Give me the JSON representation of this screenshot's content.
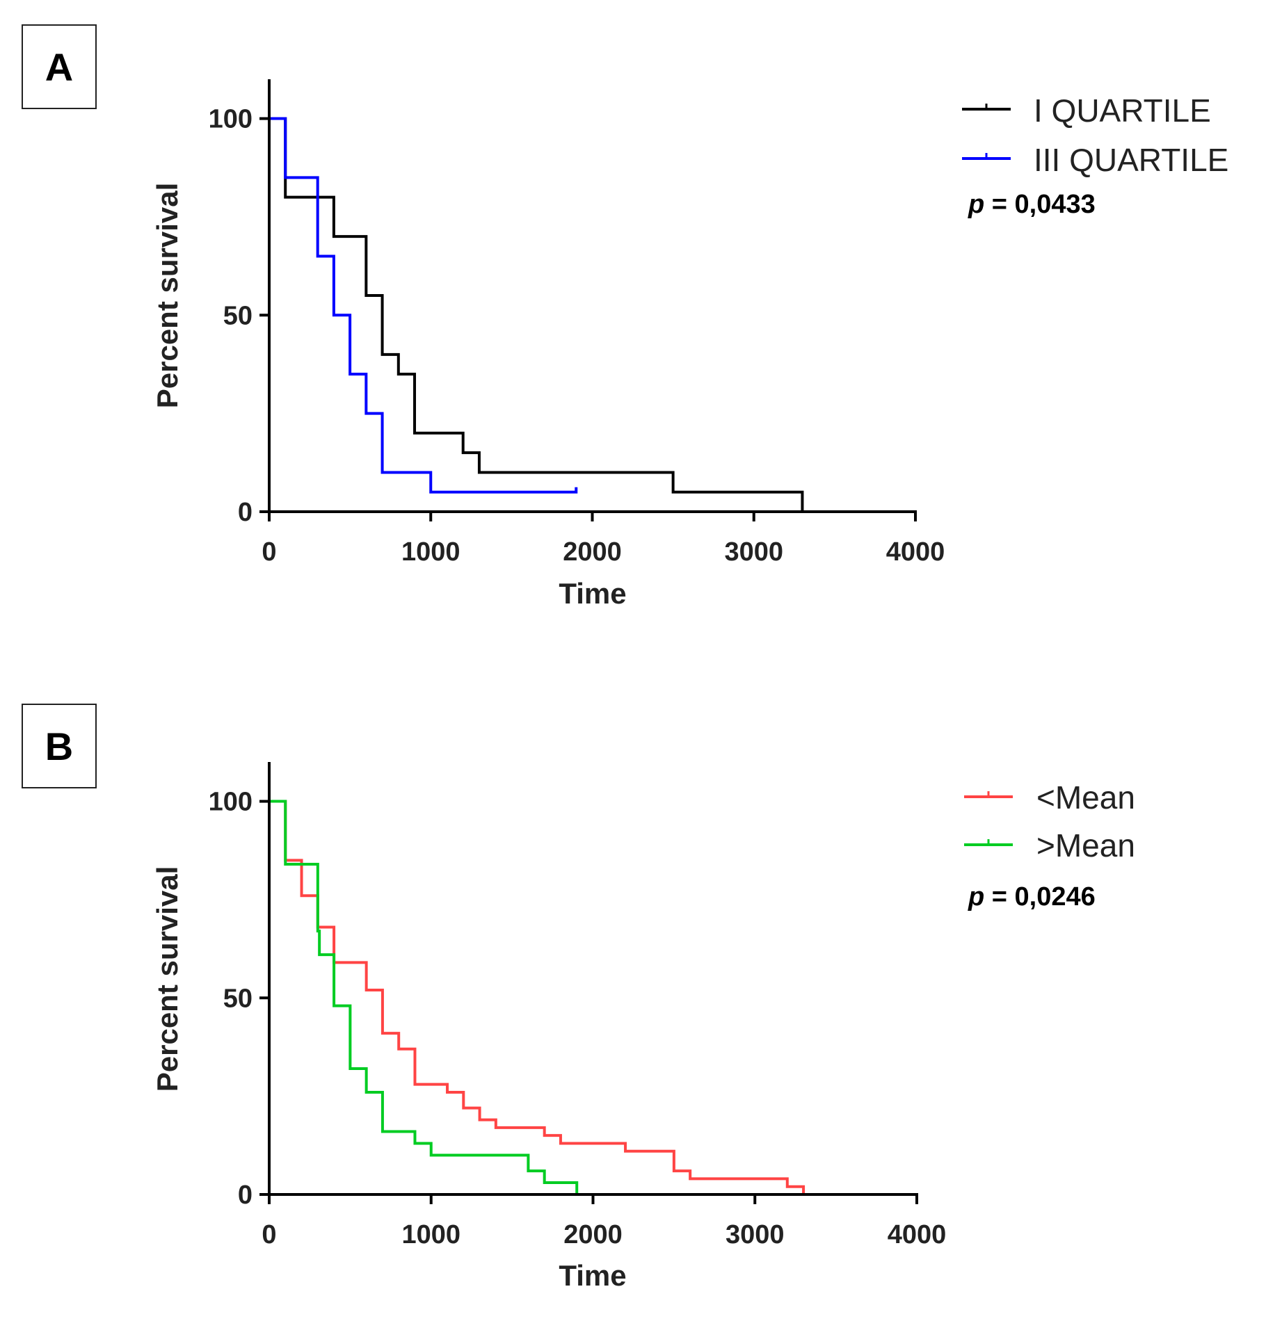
{
  "chart_data": [
    {
      "panel": "A",
      "type": "line",
      "subtype": "kaplan-meier",
      "xlabel": "Time",
      "ylabel": "Percent survival",
      "xlim": [
        0,
        4000
      ],
      "ylim": [
        0,
        110
      ],
      "xticks": [
        0,
        1000,
        2000,
        3000,
        4000
      ],
      "yticks": [
        0,
        50,
        100
      ],
      "annotation_prefix": "p",
      "annotation_value": " = 0,0433",
      "legend_position": "top-right",
      "series": [
        {
          "name": "I QUARTILE",
          "color": "#000000",
          "steps": [
            [
              0,
              100
            ],
            [
              100,
              80
            ],
            [
              400,
              70
            ],
            [
              600,
              55
            ],
            [
              700,
              40
            ],
            [
              800,
              35
            ],
            [
              900,
              20
            ],
            [
              1200,
              15
            ],
            [
              1300,
              10
            ],
            [
              2500,
              5
            ],
            [
              3300,
              0
            ]
          ],
          "end": 3300
        },
        {
          "name": "III QUARTILE",
          "color": "#0000ff",
          "steps": [
            [
              0,
              100
            ],
            [
              100,
              85
            ],
            [
              300,
              65
            ],
            [
              400,
              50
            ],
            [
              500,
              35
            ],
            [
              600,
              25
            ],
            [
              700,
              10
            ],
            [
              1000,
              5
            ]
          ],
          "end": 1900
        }
      ]
    },
    {
      "panel": "B",
      "type": "line",
      "subtype": "kaplan-meier",
      "xlabel": "Time",
      "ylabel": "Percent survival",
      "xlim": [
        0,
        4000
      ],
      "ylim": [
        0,
        110
      ],
      "xticks": [
        0,
        1000,
        2000,
        3000,
        4000
      ],
      "yticks": [
        0,
        50,
        100
      ],
      "annotation_prefix": "p",
      "annotation_value": " = 0,0246",
      "legend_position": "top-right",
      "series": [
        {
          "name": "<Mean",
          "color": "#ff4444",
          "steps": [
            [
              0,
              100
            ],
            [
              100,
              85
            ],
            [
              200,
              76
            ],
            [
              300,
              68
            ],
            [
              400,
              59
            ],
            [
              600,
              52
            ],
            [
              700,
              41
            ],
            [
              800,
              37
            ],
            [
              900,
              28
            ],
            [
              1100,
              26
            ],
            [
              1200,
              22
            ],
            [
              1300,
              19
            ],
            [
              1400,
              17
            ],
            [
              1700,
              15
            ],
            [
              1800,
              13
            ],
            [
              2200,
              11
            ],
            [
              2500,
              6
            ],
            [
              2600,
              4
            ],
            [
              3200,
              2
            ],
            [
              3300,
              0
            ]
          ],
          "end": 3300
        },
        {
          "name": ">Mean",
          "color": "#00cc22",
          "steps": [
            [
              0,
              100
            ],
            [
              100,
              84
            ],
            [
              300,
              67
            ],
            [
              310,
              61
            ],
            [
              400,
              48
            ],
            [
              500,
              32
            ],
            [
              600,
              26
            ],
            [
              700,
              16
            ],
            [
              900,
              13
            ],
            [
              1000,
              10
            ],
            [
              1600,
              6
            ],
            [
              1700,
              3
            ],
            [
              1900,
              0
            ]
          ],
          "end": 1900
        }
      ]
    }
  ]
}
